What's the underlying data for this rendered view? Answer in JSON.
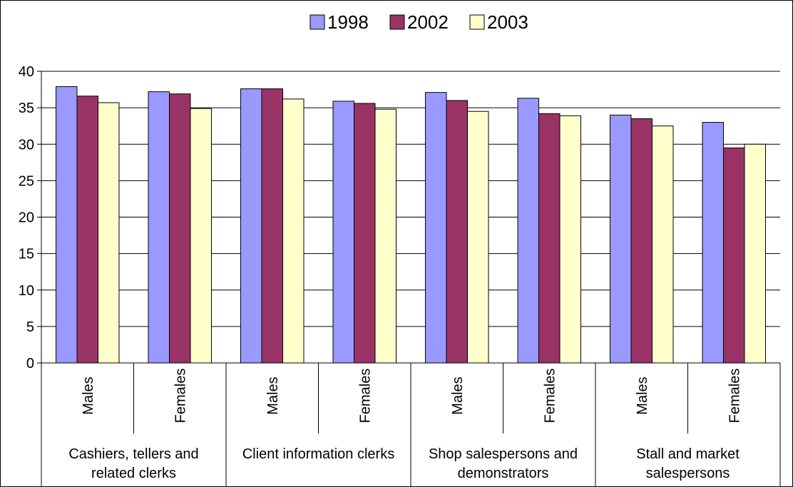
{
  "chart_data": {
    "type": "bar",
    "title": "",
    "xlabel": "",
    "ylabel": "",
    "ylim": [
      0,
      40
    ],
    "yticks": [
      0,
      5,
      10,
      15,
      20,
      25,
      30,
      35,
      40
    ],
    "grid": true,
    "legend_position": "top-center",
    "groups": [
      "Cashiers, tellers and related clerks",
      "Client information clerks",
      "Shop salespersons and demonstrators",
      "Stall and market salespersons"
    ],
    "categories": [
      "Males",
      "Females",
      "Males",
      "Females",
      "Males",
      "Females",
      "Males",
      "Females"
    ],
    "series": [
      {
        "name": "1998",
        "color": "#9999ff",
        "values": [
          37.9,
          37.2,
          37.6,
          35.9,
          37.1,
          36.3,
          34.0,
          33.0
        ]
      },
      {
        "name": "2002",
        "color": "#993366",
        "values": [
          36.6,
          36.9,
          37.6,
          35.6,
          36.0,
          34.2,
          33.5,
          29.5
        ]
      },
      {
        "name": "2003",
        "color": "#ffffcc",
        "values": [
          35.7,
          34.9,
          36.2,
          34.8,
          34.5,
          33.9,
          32.5,
          30.0
        ]
      }
    ]
  }
}
